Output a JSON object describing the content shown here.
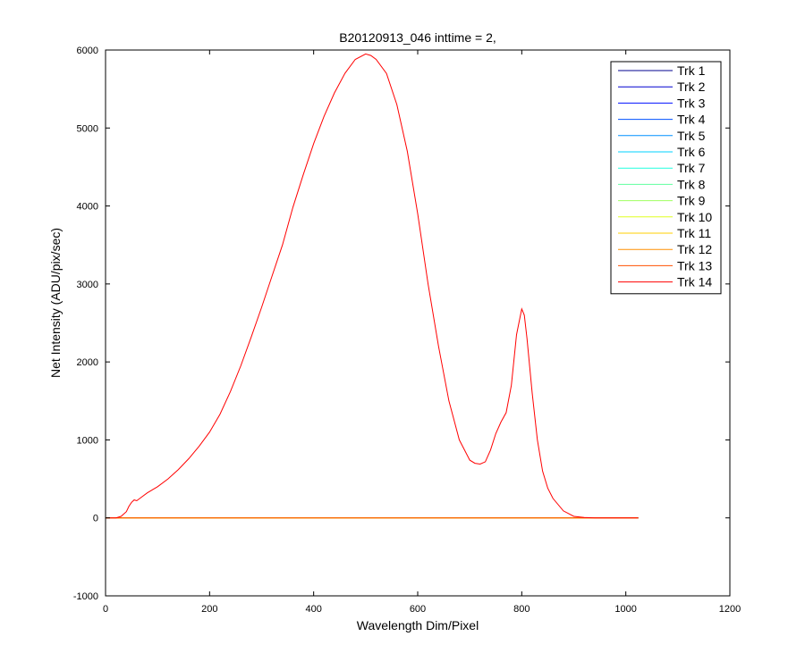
{
  "chart_data": {
    "type": "line",
    "title": "B20120913_046 inttime = 2,",
    "xlabel": "Wavelength Dim/Pixel",
    "ylabel": "Net Intensity (ADU/pix/sec)",
    "xlim": [
      0,
      1200
    ],
    "ylim": [
      -1000,
      6000
    ],
    "xticks": [
      0,
      200,
      400,
      600,
      800,
      1000,
      1200
    ],
    "yticks": [
      -1000,
      0,
      1000,
      2000,
      3000,
      4000,
      5000,
      6000
    ],
    "grid": false,
    "legend_position": "top-right",
    "series": [
      {
        "name": "Trk 1",
        "color": "#00008f",
        "x": [
          1,
          1024
        ],
        "y": [
          0,
          0
        ]
      },
      {
        "name": "Trk 2",
        "color": "#0000cf",
        "x": [
          1,
          1024
        ],
        "y": [
          0,
          0
        ]
      },
      {
        "name": "Trk 3",
        "color": "#0010ff",
        "x": [
          1,
          1024
        ],
        "y": [
          0,
          0
        ]
      },
      {
        "name": "Trk 4",
        "color": "#0050ff",
        "x": [
          1,
          1024
        ],
        "y": [
          0,
          0
        ]
      },
      {
        "name": "Trk 5",
        "color": "#0090ff",
        "x": [
          1,
          1024
        ],
        "y": [
          0,
          0
        ]
      },
      {
        "name": "Trk 6",
        "color": "#00d0ff",
        "x": [
          1,
          1024
        ],
        "y": [
          0,
          0
        ]
      },
      {
        "name": "Trk 7",
        "color": "#20ffdf",
        "x": [
          1,
          1024
        ],
        "y": [
          0,
          0
        ]
      },
      {
        "name": "Trk 8",
        "color": "#60ff9f",
        "x": [
          1,
          1024
        ],
        "y": [
          0,
          0
        ]
      },
      {
        "name": "Trk 9",
        "color": "#9fff60",
        "x": [
          1,
          1024
        ],
        "y": [
          0,
          0
        ]
      },
      {
        "name": "Trk 10",
        "color": "#dfff20",
        "x": [
          1,
          1024
        ],
        "y": [
          0,
          0
        ]
      },
      {
        "name": "Trk 11",
        "color": "#ffcf00",
        "x": [
          1,
          1024
        ],
        "y": [
          0,
          0
        ]
      },
      {
        "name": "Trk 12",
        "color": "#ff8f00",
        "x": [
          1,
          1024
        ],
        "y": [
          0,
          0
        ]
      },
      {
        "name": "Trk 13",
        "color": "#ff5000",
        "x": [
          1,
          1024
        ],
        "y": [
          0,
          0
        ]
      },
      {
        "name": "Trk 14",
        "color": "#ff0000",
        "x": [
          1,
          20,
          30,
          40,
          45,
          50,
          55,
          60,
          70,
          80,
          90,
          100,
          120,
          140,
          160,
          180,
          200,
          220,
          240,
          260,
          280,
          300,
          320,
          340,
          360,
          380,
          400,
          420,
          440,
          460,
          480,
          500,
          510,
          520,
          540,
          560,
          580,
          600,
          620,
          640,
          660,
          680,
          700,
          710,
          720,
          730,
          740,
          750,
          760,
          770,
          780,
          790,
          800,
          805,
          810,
          820,
          830,
          840,
          850,
          860,
          880,
          900,
          920,
          940,
          960,
          980,
          1000,
          1024
        ],
        "y": [
          0,
          0,
          20,
          80,
          150,
          200,
          230,
          220,
          270,
          320,
          360,
          400,
          500,
          620,
          760,
          920,
          1100,
          1330,
          1620,
          1950,
          2320,
          2700,
          3100,
          3500,
          3980,
          4400,
          4800,
          5150,
          5450,
          5700,
          5880,
          5950,
          5930,
          5880,
          5700,
          5300,
          4700,
          3900,
          3000,
          2200,
          1500,
          1000,
          740,
          700,
          690,
          720,
          870,
          1080,
          1230,
          1350,
          1700,
          2350,
          2680,
          2600,
          2300,
          1600,
          1000,
          600,
          380,
          250,
          90,
          20,
          5,
          0,
          0,
          0,
          0,
          0
        ]
      }
    ]
  }
}
